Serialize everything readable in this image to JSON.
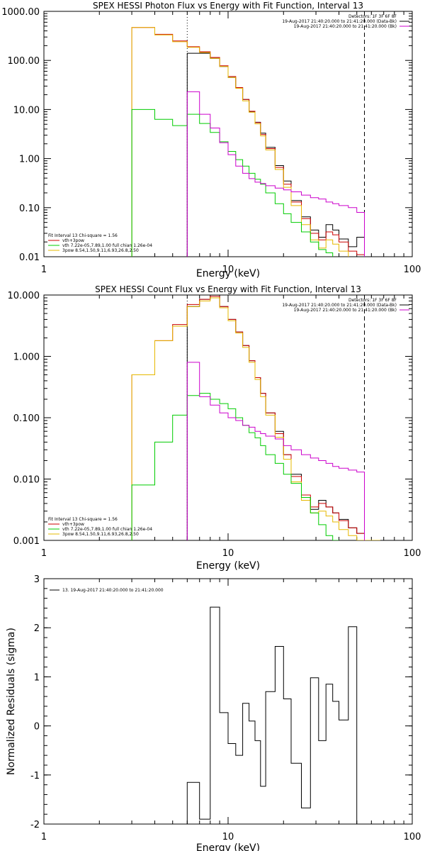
{
  "chart_data": [
    {
      "type": "line",
      "title": "SPEX HESSI Photon Flux vs Energy with Fit Function, Interval 13",
      "xlabel": "Energy (keV)",
      "ylabel": "",
      "xscale": "log",
      "yscale": "log",
      "xlim": [
        1,
        100
      ],
      "ylim": [
        0.01,
        1000
      ],
      "x_ticks": [
        {
          "value": 1,
          "label": "1"
        },
        {
          "value": 10,
          "label": "10"
        },
        {
          "value": 100,
          "label": "100"
        }
      ],
      "y_ticks": [
        {
          "value": 1000,
          "label": "1000.00"
        },
        {
          "value": 100,
          "label": "100.00"
        },
        {
          "value": 10,
          "label": "10.00"
        },
        {
          "value": 1,
          "label": "1.00"
        },
        {
          "value": 0.1,
          "label": "0.10"
        },
        {
          "value": 0.01,
          "label": "0.01"
        }
      ],
      "legend_top_right": [
        {
          "text": "Detectors: 1F 3F 6F 8F",
          "color": "#000000"
        },
        {
          "text": "19-Aug-2017 21:40:20.000 to 21:41:20.000 (Data-Bk)",
          "color": "#000000"
        },
        {
          "text": "19-Aug-2017 21:40:20.000 to 21:41:20.000 (Bk)",
          "color": "#cc00cc"
        }
      ],
      "legend_bottom_left": [
        {
          "text": "Fit Interval 13   Chi-square = 1.56",
          "color": "#000000"
        },
        {
          "text": "vth+3pow",
          "color": "#cc0000"
        },
        {
          "text": "vth 7.22e-05,7.89,1.00  full chian 1.26e-04",
          "color": "#00cc00"
        },
        {
          "text": "3pow 8.54,1.50,9.11,6.93,26.8,2.50",
          "color": "#e6b800"
        }
      ],
      "vlines": [
        {
          "x": 6.0,
          "style": "dotted"
        },
        {
          "x": 55.0,
          "style": "dashed"
        }
      ],
      "edges": [
        3.0,
        4.0,
        5.0,
        6.0,
        7.0,
        8.0,
        9.0,
        10.0,
        11.0,
        12.0,
        13.0,
        14.0,
        15.0,
        16.0,
        18.0,
        20.0,
        22.0,
        25.0,
        28.0,
        31.0,
        34.0,
        37.0,
        40.0,
        45.0,
        50.0,
        55.0
      ],
      "series": [
        {
          "color": "#000000",
          "values": [
            null,
            null,
            null,
            140,
            140,
            110,
            75,
            45,
            28,
            16,
            9.0,
            5.5,
            3.3,
            1.7,
            0.72,
            0.35,
            0.14,
            0.065,
            0.035,
            0.025,
            0.045,
            0.035,
            0.023,
            0.016,
            0.025
          ]
        },
        {
          "color": "#cc0000",
          "values": [
            470,
            340,
            250,
            190,
            150,
            115,
            78,
            47,
            28,
            16,
            9.2,
            5.4,
            3.1,
            1.6,
            0.66,
            0.3,
            0.13,
            0.06,
            0.03,
            0.022,
            0.032,
            0.028,
            0.02,
            0.013,
            0.011
          ]
        },
        {
          "color": "#e6b800",
          "values": [
            470,
            330,
            240,
            185,
            145,
            110,
            75,
            45,
            27,
            15,
            8.8,
            5.1,
            2.9,
            1.5,
            0.6,
            0.26,
            0.11,
            0.045,
            0.022,
            0.015,
            0.022,
            0.018,
            0.013,
            0.009,
            0.007
          ]
        },
        {
          "color": "#00cc00",
          "values": [
            10,
            6.3,
            4.7,
            8,
            5.2,
            3.4,
            2.2,
            1.4,
            0.95,
            0.7,
            0.5,
            0.38,
            0.3,
            0.2,
            0.12,
            0.075,
            0.05,
            0.032,
            0.02,
            0.014,
            0.012,
            0.007,
            null,
            null,
            null
          ]
        },
        {
          "color": "#cc00cc",
          "values": [
            null,
            null,
            null,
            23,
            8,
            4.2,
            2.1,
            1.2,
            0.7,
            0.5,
            0.39,
            0.33,
            0.31,
            0.28,
            0.25,
            0.23,
            0.21,
            0.18,
            0.16,
            0.15,
            0.13,
            0.12,
            0.11,
            0.1,
            0.08
          ]
        }
      ]
    },
    {
      "type": "line",
      "title": "SPEX HESSI Count Flux vs Energy with Fit Function, Interval 13",
      "xlabel": "Energy (keV)",
      "ylabel": "",
      "xscale": "log",
      "yscale": "log",
      "xlim": [
        1,
        100
      ],
      "ylim": [
        0.001,
        10
      ],
      "x_ticks": [
        {
          "value": 1,
          "label": "1"
        },
        {
          "value": 10,
          "label": "10"
        },
        {
          "value": 100,
          "label": "100"
        }
      ],
      "y_ticks": [
        {
          "value": 10,
          "label": "10.000"
        },
        {
          "value": 1,
          "label": "1.000"
        },
        {
          "value": 0.1,
          "label": "0.100"
        },
        {
          "value": 0.01,
          "label": "0.010"
        },
        {
          "value": 0.001,
          "label": "0.001"
        }
      ],
      "legend_top_right": [
        {
          "text": "Detectors: 1F 3F 6F 8F",
          "color": "#000000"
        },
        {
          "text": "19-Aug-2017 21:40:20.000 to 21:41:20.000 (Data-Bk)",
          "color": "#000000"
        },
        {
          "text": "19-Aug-2017 21:40:20.000 to 21:41:20.000 (Bk)",
          "color": "#cc00cc"
        }
      ],
      "legend_bottom_left": [
        {
          "text": "Fit Interval 13   Chi-square = 1.56",
          "color": "#000000"
        },
        {
          "text": "vth+3pow",
          "color": "#cc0000"
        },
        {
          "text": "vth 7.22e-05,7.89,1.00  full chian 1.26e-04",
          "color": "#00cc00"
        },
        {
          "text": "3pow 8.54,1.50,9.11,6.93,26.8,2.50",
          "color": "#e6b800"
        }
      ],
      "vlines": [
        {
          "x": 6.0,
          "style": "dotted"
        },
        {
          "x": 55.0,
          "style": "dashed"
        }
      ],
      "edges": [
        3.0,
        4.0,
        5.0,
        6.0,
        7.0,
        8.0,
        9.0,
        10.0,
        11.0,
        12.0,
        13.0,
        14.0,
        15.0,
        16.0,
        18.0,
        20.0,
        22.0,
        25.0,
        28.0,
        31.0,
        34.0,
        37.0,
        40.0,
        45.0,
        50.0,
        55.0,
        60.0,
        67.0
      ],
      "series": [
        {
          "color": "#000000",
          "values": [
            null,
            null,
            null,
            6.5,
            8.5,
            9.0,
            6.5,
            4.0,
            2.5,
            1.5,
            0.85,
            0.45,
            0.25,
            0.12,
            0.06,
            0.025,
            0.012,
            0.005,
            0.0032,
            0.0045,
            0.0035,
            0.0028,
            0.0022,
            0.0016,
            0.0013,
            null,
            null
          ]
        },
        {
          "color": "#cc0000",
          "values": [
            0.5,
            1.8,
            3.3,
            7.0,
            8.5,
            9.5,
            6.5,
            4.0,
            2.5,
            1.5,
            0.85,
            0.45,
            0.25,
            0.12,
            0.055,
            0.025,
            0.011,
            0.0055,
            0.0035,
            0.004,
            0.0035,
            0.0028,
            0.0021,
            0.0016,
            0.0013,
            0.001,
            0.001
          ]
        },
        {
          "color": "#e6b800",
          "values": [
            0.5,
            1.8,
            3.1,
            6.5,
            8.0,
            9.0,
            6.2,
            3.8,
            2.4,
            1.4,
            0.8,
            0.42,
            0.22,
            0.11,
            0.048,
            0.021,
            0.009,
            0.0045,
            0.0028,
            0.003,
            0.0025,
            0.002,
            0.0015,
            0.0012,
            0.001,
            0.001,
            0.001
          ]
        },
        {
          "color": "#00cc00",
          "values": [
            0.008,
            0.04,
            0.11,
            0.23,
            0.25,
            0.2,
            0.17,
            0.14,
            0.1,
            0.075,
            0.057,
            0.047,
            0.035,
            0.025,
            0.018,
            0.012,
            0.0085,
            0.005,
            0.0028,
            0.0018,
            0.0012,
            0.001,
            null,
            null,
            null,
            null,
            null
          ]
        },
        {
          "color": "#cc00cc",
          "values": [
            null,
            null,
            null,
            0.8,
            0.22,
            0.16,
            0.12,
            0.1,
            0.09,
            0.075,
            0.07,
            0.06,
            0.055,
            0.05,
            0.045,
            0.035,
            0.03,
            0.025,
            0.022,
            0.02,
            0.018,
            0.016,
            0.015,
            0.014,
            0.013,
            null,
            null
          ]
        }
      ]
    },
    {
      "type": "line",
      "title": "",
      "xlabel": "Energy (keV)",
      "ylabel": "Normalized Residuals (sigma)",
      "xscale": "log",
      "yscale": "linear",
      "xlim": [
        1,
        100
      ],
      "ylim": [
        -2,
        3
      ],
      "x_ticks": [
        {
          "value": 1,
          "label": "1"
        },
        {
          "value": 10,
          "label": "10"
        },
        {
          "value": 100,
          "label": "100"
        }
      ],
      "y_ticks": [
        {
          "value": 3,
          "label": "3"
        },
        {
          "value": 2,
          "label": "2"
        },
        {
          "value": 1,
          "label": "1"
        },
        {
          "value": 0,
          "label": "0"
        },
        {
          "value": -1,
          "label": "-1"
        },
        {
          "value": -2,
          "label": "-2"
        }
      ],
      "legend_top_left": [
        {
          "text": "13. 19-Aug-2017 21:40:20.000 to 21:41:20.000",
          "color": "#000000"
        }
      ],
      "vlines": [],
      "edges": [
        6.0,
        7.0,
        8.0,
        9.0,
        10.0,
        11.0,
        12.0,
        13.0,
        14.0,
        15.0,
        16.0,
        18.0,
        20.0,
        22.0,
        25.0,
        28.0,
        31.0,
        34.0,
        37.0,
        40.0,
        45.0,
        50.0,
        55.0
      ],
      "series": [
        {
          "color": "#000000",
          "values": [
            -1.15,
            -1.9,
            2.42,
            0.27,
            -0.36,
            -0.6,
            0.46,
            0.1,
            -0.3,
            -1.23,
            0.7,
            1.62,
            0.55,
            -0.76,
            -1.67,
            0.98,
            -0.3,
            0.85,
            0.5,
            0.12,
            2.02,
            -2.0
          ]
        }
      ]
    }
  ]
}
